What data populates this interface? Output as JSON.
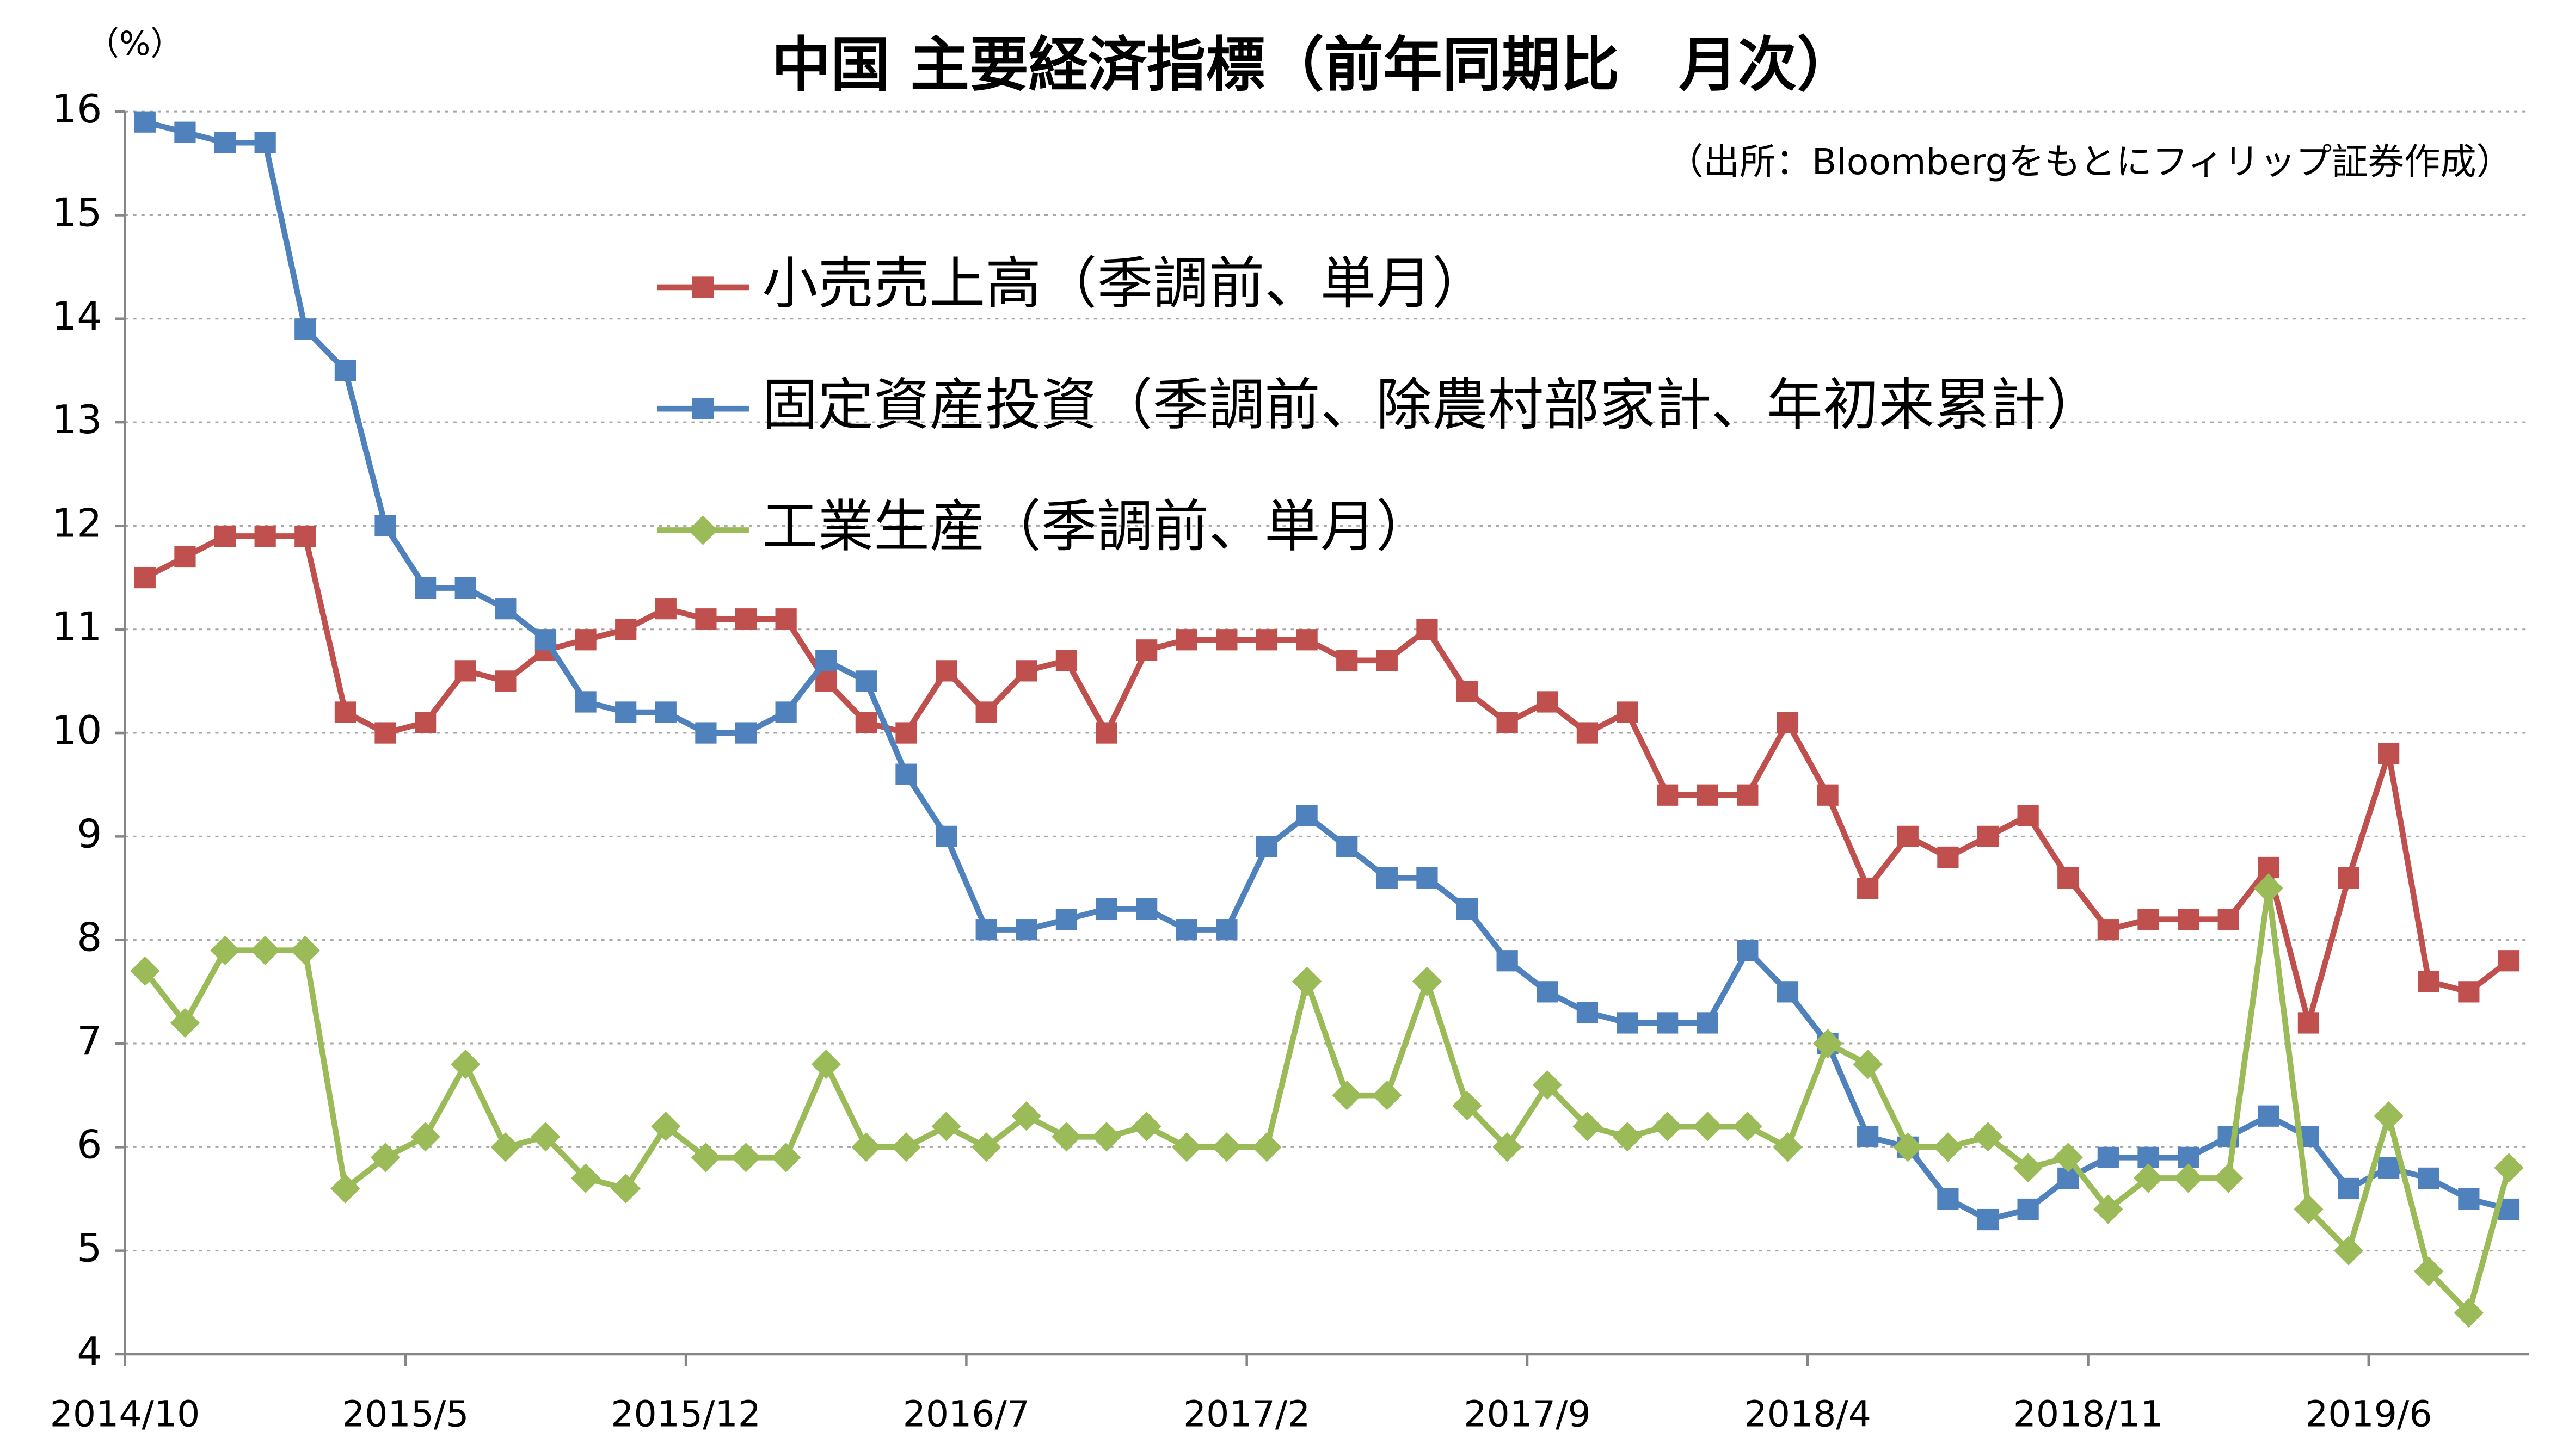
{
  "chart_data": {
    "type": "line",
    "title": "中国 主要経済指標（前年同期比　月次）",
    "subtitle": "（出所：Bloombergをもとにフィリップ証券作成）",
    "y_axis_label": "（%）",
    "categories": [
      "2014/10",
      null,
      null,
      null,
      null,
      null,
      null,
      "2015/5",
      null,
      null,
      null,
      null,
      null,
      null,
      "2015/12",
      null,
      null,
      null,
      null,
      null,
      null,
      "2016/7",
      null,
      null,
      null,
      null,
      null,
      null,
      "2017/2",
      null,
      null,
      null,
      null,
      null,
      null,
      "2017/9",
      null,
      null,
      null,
      null,
      null,
      null,
      "2018/4",
      null,
      null,
      null,
      null,
      null,
      null,
      "2018/11",
      null,
      null,
      null,
      null,
      null,
      null,
      "2019/6",
      null,
      null,
      null
    ],
    "series": [
      {
        "name": "小売売上高（季調前、単月）",
        "color": "#c0504d",
        "marker": "square",
        "values": [
          11.5,
          11.7,
          11.9,
          11.9,
          11.9,
          10.2,
          10.0,
          10.1,
          10.6,
          10.5,
          10.8,
          10.9,
          11.0,
          11.2,
          11.1,
          11.1,
          11.1,
          10.5,
          10.1,
          10.0,
          10.6,
          10.2,
          10.6,
          10.7,
          10.0,
          10.8,
          10.9,
          10.9,
          10.9,
          10.9,
          10.7,
          10.7,
          11.0,
          10.4,
          10.1,
          10.3,
          10.0,
          10.2,
          9.4,
          9.4,
          9.4,
          10.1,
          9.4,
          8.5,
          9.0,
          8.8,
          9.0,
          9.2,
          8.6,
          8.1,
          8.2,
          8.2,
          8.2,
          8.7,
          7.2,
          8.6,
          9.8,
          7.6,
          7.5,
          7.8
        ]
      },
      {
        "name": "固定資産投資（季調前、除農村部家計、年初来累計）",
        "color": "#4f81bd",
        "marker": "square",
        "values": [
          15.9,
          15.8,
          15.7,
          15.7,
          13.9,
          13.5,
          12.0,
          11.4,
          11.4,
          11.2,
          10.9,
          10.3,
          10.2,
          10.2,
          10.0,
          10.0,
          10.2,
          10.7,
          10.5,
          9.6,
          9.0,
          8.1,
          8.1,
          8.2,
          8.3,
          8.3,
          8.1,
          8.1,
          8.9,
          9.2,
          8.9,
          8.6,
          8.6,
          8.3,
          7.8,
          7.5,
          7.3,
          7.2,
          7.2,
          7.2,
          7.9,
          7.5,
          7.0,
          6.1,
          6.0,
          5.5,
          5.3,
          5.4,
          5.7,
          5.9,
          5.9,
          5.9,
          6.1,
          6.3,
          6.1,
          5.6,
          5.8,
          5.7,
          5.5,
          5.4
        ]
      },
      {
        "name": "工業生産（季調前、単月）",
        "color": "#9bbb59",
        "marker": "diamond",
        "values": [
          7.7,
          7.2,
          7.9,
          7.9,
          7.9,
          5.6,
          5.9,
          6.1,
          6.8,
          6.0,
          6.1,
          5.7,
          5.6,
          6.2,
          5.9,
          5.9,
          5.9,
          6.8,
          6.0,
          6.0,
          6.2,
          6.0,
          6.3,
          6.1,
          6.1,
          6.2,
          6.0,
          6.0,
          6.0,
          7.6,
          6.5,
          6.5,
          7.6,
          6.4,
          6.0,
          6.6,
          6.2,
          6.1,
          6.2,
          6.2,
          6.2,
          6.0,
          7.0,
          6.8,
          6.0,
          6.0,
          6.1,
          5.8,
          5.9,
          5.4,
          5.7,
          5.7,
          5.7,
          8.5,
          5.4,
          5.0,
          6.3,
          4.8,
          4.4,
          5.8
        ]
      }
    ],
    "ylim": [
      4,
      16
    ],
    "yticks": [
      4,
      5,
      6,
      7,
      8,
      9,
      10,
      11,
      12,
      13,
      14,
      15,
      16
    ],
    "grid": true
  }
}
